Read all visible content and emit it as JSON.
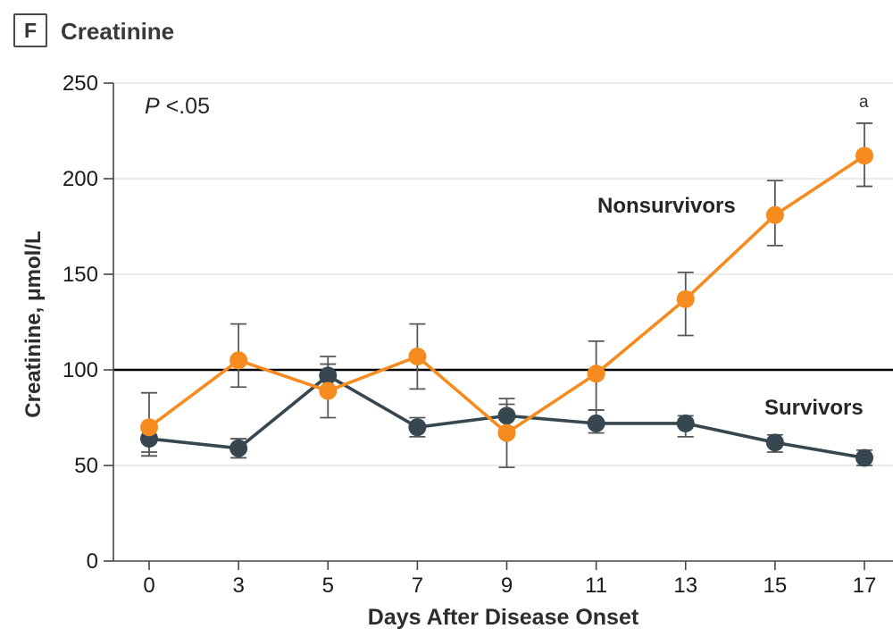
{
  "panel": {
    "letter": "F",
    "title": "Creatinine"
  },
  "chart_data": {
    "type": "line",
    "title": "Creatinine",
    "xlabel": "Days After Disease Onset",
    "ylabel": "Creatinine, μmol/L",
    "x_tick_labels": [
      "0",
      "3",
      "5",
      "7",
      "9",
      "11",
      "13",
      "15",
      "17"
    ],
    "x_values": [
      0,
      3,
      5,
      7,
      9,
      11,
      13,
      15,
      17
    ],
    "yticks": [
      0,
      50,
      100,
      150,
      200,
      250
    ],
    "ylim": [
      0,
      250
    ],
    "reference_line_y": 100,
    "grid": {
      "horizontal": true,
      "color": "#DFDFDF"
    },
    "error_bar_color": "#54585A",
    "p_annotation": {
      "prefix": "P",
      "rest": " <.05"
    },
    "footnote_marker": "a",
    "footnote_applies_to": "Nonsurvivors day 17 point",
    "series": [
      {
        "name": "Survivors",
        "color": "#36474F",
        "values": [
          64,
          59,
          97,
          70,
          76,
          72,
          72,
          62,
          54
        ],
        "err_low": [
          57,
          54,
          89,
          65,
          70,
          67,
          65,
          57,
          50
        ],
        "err_high": [
          71,
          64,
          107,
          75,
          82,
          79,
          76,
          66,
          58
        ]
      },
      {
        "name": "Nonsurvivors",
        "color": "#F68B1F",
        "values": [
          70,
          105,
          89,
          107,
          67,
          98,
          137,
          181,
          212
        ],
        "err_low": [
          55,
          91,
          75,
          90,
          49,
          79,
          118,
          165,
          196
        ],
        "err_high": [
          88,
          124,
          103,
          124,
          85,
          115,
          151,
          199,
          229
        ]
      }
    ],
    "legend_position": "inline labels next to lines"
  }
}
